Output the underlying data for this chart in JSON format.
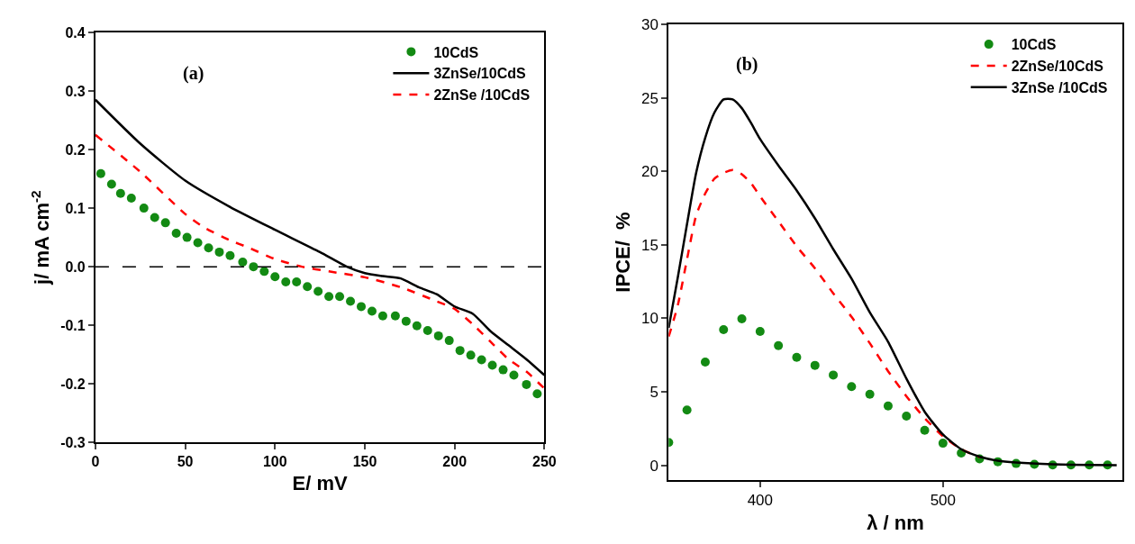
{
  "chart_data": [
    {
      "type": "line",
      "annotations": [
        "(a)"
      ],
      "xlabel": "E/ mV",
      "ylabel": "j/ mA cm$^{-2}$",
      "xlim": [
        0,
        250
      ],
      "xticks": [
        0,
        50,
        100,
        150,
        200,
        {
          "value": 250,
          "label": "250"
        }
      ],
      "ylim": [
        -0.3,
        0.4
      ],
      "yticks": [
        -0.3,
        -0.2,
        -0.1,
        {
          "value": 0,
          "label": "0.0"
        },
        0.1,
        0.2,
        0.3,
        0.4
      ],
      "grid": false,
      "legend": "top right",
      "ref_lines": [
        {
          "axis": "y",
          "value": 0,
          "color": "#000000",
          "line_style": "dashed"
        }
      ],
      "series": [
        {
          "name": "10CdS",
          "type": "scatter",
          "marker": "circle",
          "color": "#138a13",
          "x": [
            3,
            9,
            14,
            20,
            27,
            33,
            39,
            45,
            51,
            57,
            63,
            69,
            75,
            82,
            88,
            94,
            100,
            106,
            112,
            118,
            124,
            130,
            136,
            142,
            148,
            154,
            160,
            167,
            173,
            179,
            185,
            191,
            197,
            203,
            209,
            215,
            221,
            227,
            233,
            240,
            246
          ],
          "values": [
            0.159,
            0.141,
            0.125,
            0.117,
            0.1,
            0.084,
            0.075,
            0.057,
            0.05,
            0.041,
            0.032,
            0.025,
            0.019,
            0.008,
            0.0,
            -0.008,
            -0.017,
            -0.026,
            -0.026,
            -0.034,
            -0.042,
            -0.051,
            -0.051,
            -0.059,
            -0.068,
            -0.076,
            -0.084,
            -0.084,
            -0.093,
            -0.101,
            -0.109,
            -0.118,
            -0.126,
            -0.143,
            -0.151,
            -0.159,
            -0.168,
            -0.176,
            -0.185,
            -0.201,
            -0.217
          ]
        },
        {
          "name": "3ZnSe/10CdS",
          "line_style": "solid",
          "color": "#000000",
          "x": [
            0,
            25,
            50,
            75,
            100,
            125,
            140,
            150,
            160,
            170,
            180,
            190,
            200,
            210,
            220,
            230,
            240,
            250
          ],
          "values": [
            0.285,
            0.21,
            0.147,
            0.102,
            0.063,
            0.025,
            0.0,
            -0.011,
            -0.016,
            -0.02,
            -0.035,
            -0.047,
            -0.068,
            -0.08,
            -0.11,
            -0.134,
            -0.158,
            -0.185
          ]
        },
        {
          "name": "2ZnSe /10CdS",
          "line_style": "dashed",
          "color": "#ff0000",
          "x": [
            0,
            25,
            50,
            60,
            75,
            85,
            100,
            115,
            130,
            150,
            170,
            190,
            200,
            210,
            220,
            230,
            240,
            250
          ],
          "values": [
            0.225,
            0.162,
            0.09,
            0.068,
            0.045,
            0.033,
            0.013,
            0.0,
            -0.008,
            -0.018,
            -0.035,
            -0.059,
            -0.072,
            -0.098,
            -0.128,
            -0.158,
            -0.179,
            -0.208
          ]
        }
      ]
    },
    {
      "type": "line",
      "annotations": [
        "(b)"
      ],
      "xlabel": "λ / nm",
      "ylabel": "IPCE/  %",
      "xlim": [
        350,
        598
      ],
      "xticks": [
        400,
        500
      ],
      "ylim": [
        -1,
        30
      ],
      "yticks": [
        0,
        5,
        10,
        15,
        20,
        25,
        30
      ],
      "grid": false,
      "legend": "top right",
      "series": [
        {
          "name": "10CdS",
          "type": "scatter",
          "marker": "circle",
          "color": "#138a13",
          "x": [
            350,
            360,
            370,
            380,
            390,
            400,
            410,
            420,
            430,
            440,
            450,
            460,
            470,
            480,
            490,
            500,
            510,
            520,
            530,
            540,
            550,
            560,
            570,
            580,
            590
          ],
          "values": [
            1.55,
            3.76,
            7.02,
            9.23,
            9.97,
            9.11,
            8.14,
            7.35,
            6.8,
            6.14,
            5.35,
            4.83,
            4.04,
            3.35,
            2.38,
            1.5,
            0.83,
            0.43,
            0.24,
            0.12,
            0.07,
            0.02,
            0.02,
            0.02,
            0.02
          ]
        },
        {
          "name": "2ZnSe/10CdS",
          "line_style": "dashed",
          "color": "#ff0000",
          "x": [
            350,
            355,
            360,
            365,
            370,
            375,
            380,
            385,
            390,
            395,
            400,
            410,
            420,
            430,
            440,
            450,
            460,
            470,
            480,
            490,
            500,
            510,
            520
          ],
          "values": [
            8.76,
            10.9,
            14.0,
            17.0,
            18.5,
            19.5,
            19.9,
            20.1,
            19.8,
            19.2,
            18.3,
            16.6,
            14.9,
            13.4,
            11.7,
            10.1,
            8.3,
            6.4,
            4.7,
            3.2,
            1.97,
            1.09,
            0.55
          ]
        },
        {
          "name": "3ZnSe /10CdS",
          "line_style": "solid",
          "color": "#000000",
          "x": [
            350,
            355,
            360,
            365,
            370,
            375,
            380,
            385,
            390,
            395,
            400,
            410,
            420,
            430,
            440,
            450,
            460,
            470,
            480,
            490,
            500,
            510,
            520,
            530,
            540,
            560,
            580,
            595
          ],
          "values": [
            9.35,
            12.8,
            16.4,
            19.9,
            22.3,
            24.0,
            24.9,
            24.9,
            24.3,
            23.3,
            22.2,
            20.4,
            18.7,
            16.8,
            14.7,
            12.7,
            10.4,
            8.4,
            5.9,
            3.64,
            2.09,
            1.09,
            0.59,
            0.31,
            0.19,
            0.07,
            0.02,
            0.0
          ]
        }
      ]
    }
  ]
}
